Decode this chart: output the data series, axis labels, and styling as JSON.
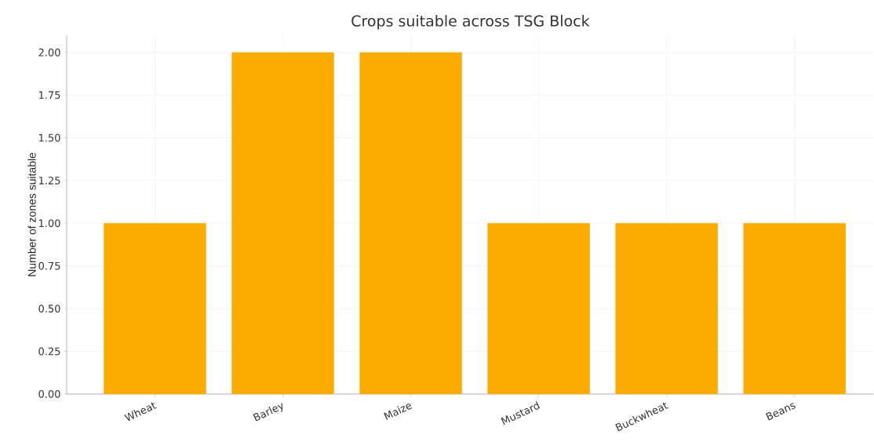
{
  "chart_data": {
    "type": "bar",
    "title": "Crops suitable across TSG Block",
    "ylabel": "Number of zones suitable",
    "categories": [
      "Wheat",
      "Barley",
      "Maize",
      "Mustard",
      "Buckwheat",
      "Beans"
    ],
    "values": [
      1,
      2,
      2,
      1,
      1,
      1
    ],
    "color": "#fcac00",
    "ylim": [
      0,
      2.1
    ],
    "yticks": [
      {
        "value": 0,
        "label": "0.00"
      },
      {
        "value": 0.25,
        "label": "0.25"
      },
      {
        "value": 0.5,
        "label": "0.50"
      },
      {
        "value": 0.75,
        "label": "0.75"
      },
      {
        "value": 1,
        "label": "1.00"
      },
      {
        "value": 1.25,
        "label": "1.25"
      },
      {
        "value": 1.5,
        "label": "1.50"
      },
      {
        "value": 1.75,
        "label": "1.75"
      },
      {
        "value": 2,
        "label": "2.00"
      }
    ],
    "grid": true
  }
}
